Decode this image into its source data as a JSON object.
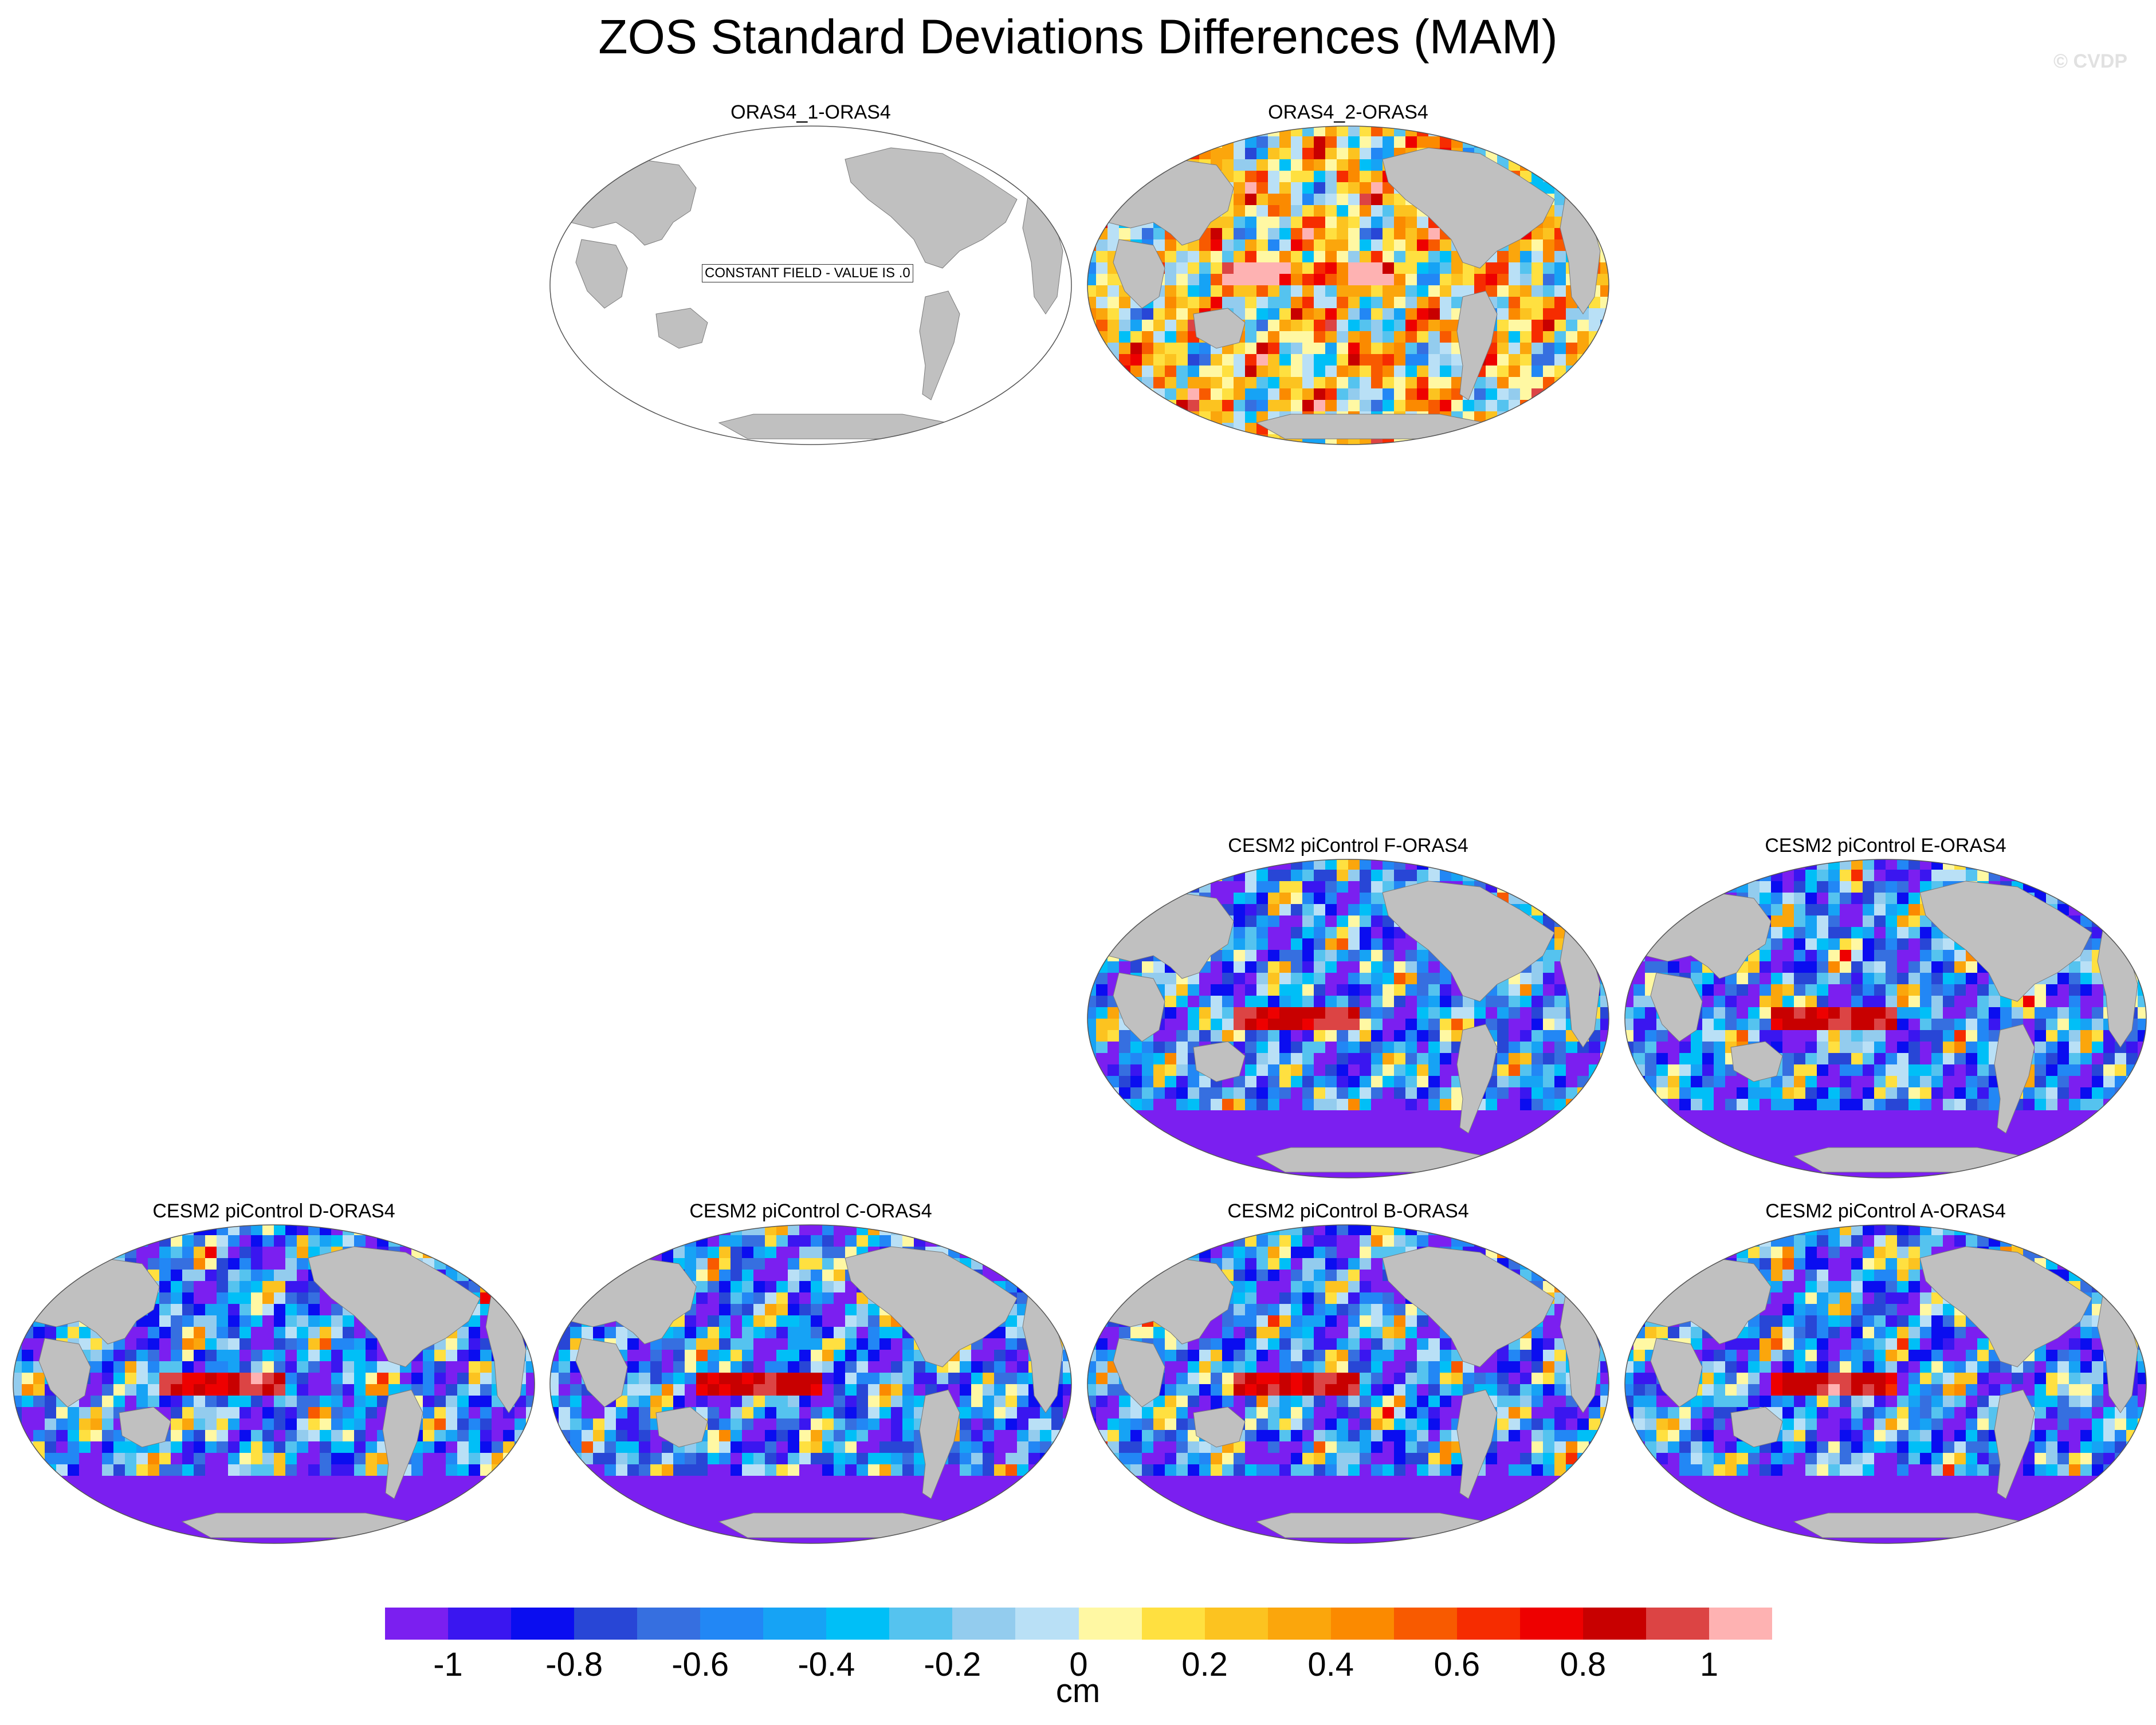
{
  "title": "ZOS Standard Deviations Differences (MAM)",
  "watermark": "© CVDP",
  "panels": [
    {
      "title": "ORAS4_1-ORAS4",
      "pattern": "constant",
      "note": "CONSTANT FIELD - VALUE IS .0"
    },
    {
      "title": "ORAS4_2-ORAS4",
      "pattern": "mixed"
    },
    {
      "title": "CESM2 piControl F-ORAS4",
      "pattern": "negative"
    },
    {
      "title": "CESM2 piControl E-ORAS4",
      "pattern": "negative"
    },
    {
      "title": "CESM2 piControl D-ORAS4",
      "pattern": "negative"
    },
    {
      "title": "CESM2 piControl C-ORAS4",
      "pattern": "negative"
    },
    {
      "title": "CESM2 piControl B-ORAS4",
      "pattern": "negative"
    },
    {
      "title": "CESM2 piControl A-ORAS4",
      "pattern": "negative"
    }
  ],
  "colorbar": {
    "colors": [
      "#7b1ff0",
      "#3a16f0",
      "#0a0df0",
      "#2846d6",
      "#366fe0",
      "#2287f5",
      "#16a3f5",
      "#00bff7",
      "#55c3ef",
      "#93ccee",
      "#b9e0f6",
      "#fff8a3",
      "#ffe040",
      "#fcc320",
      "#fba60c",
      "#fb8a00",
      "#f85a00",
      "#f62c00",
      "#ee0000",
      "#c80000",
      "#dc4444",
      "#feb2b2"
    ],
    "tick_labels": [
      "-1",
      "-0.8",
      "-0.6",
      "-0.4",
      "-0.2",
      "0",
      "0.2",
      "0.4",
      "0.6",
      "0.8",
      "1"
    ],
    "units": "cm"
  },
  "land_color": "#c0c0c0"
}
